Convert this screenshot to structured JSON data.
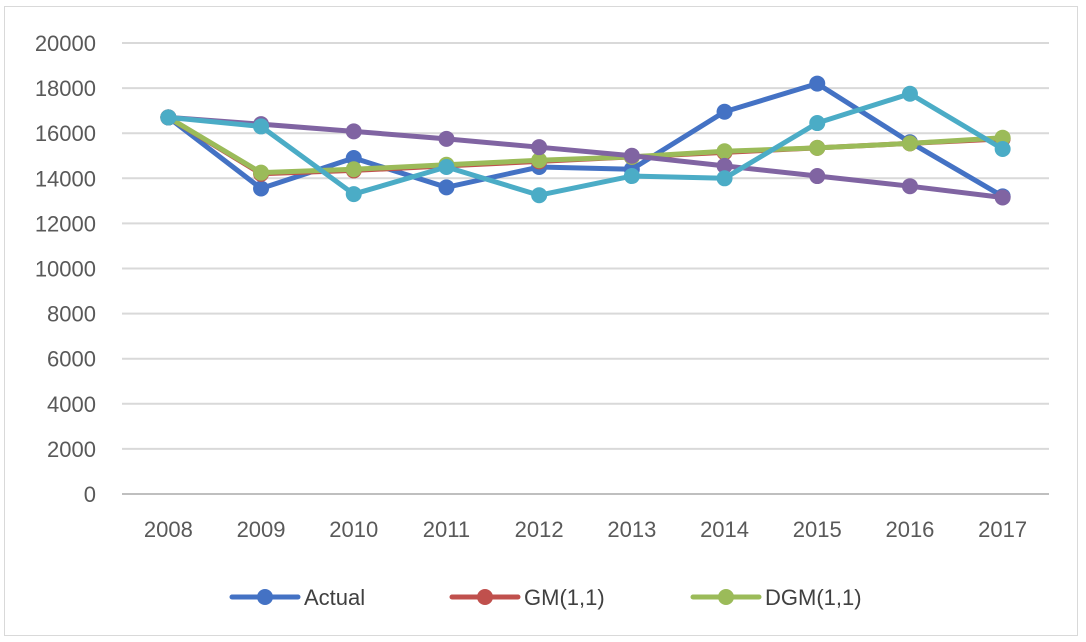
{
  "chart_data": {
    "type": "line",
    "categories": [
      "2008",
      "2009",
      "2010",
      "2011",
      "2012",
      "2013",
      "2014",
      "2015",
      "2016",
      "2017"
    ],
    "ylim": [
      0,
      20000
    ],
    "yticks": [
      0,
      2000,
      4000,
      6000,
      8000,
      10000,
      12000,
      14000,
      16000,
      18000,
      20000
    ],
    "ytick_labels": [
      "0",
      "2000",
      "4000",
      "6000",
      "8000",
      "10000",
      "12000",
      "14000",
      "16000",
      "18000",
      "20000"
    ],
    "grid": "horizontal",
    "legend_position": "bottom",
    "series": [
      {
        "name": "Actual",
        "color": "#4472c4",
        "in_legend": true,
        "values": [
          16700,
          13550,
          14900,
          13600,
          14500,
          14400,
          16950,
          18200,
          15600,
          13200
        ]
      },
      {
        "name": "GM(1,1)",
        "color": "#c0504d",
        "in_legend": true,
        "values": [
          16700,
          14200,
          14350,
          14550,
          14750,
          14950,
          15150,
          15350,
          15550,
          15750
        ]
      },
      {
        "name": "DGM(1,1)",
        "color": "#9bbb59",
        "in_legend": true,
        "values": [
          16700,
          14250,
          14400,
          14600,
          14800,
          14950,
          15200,
          15350,
          15550,
          15800
        ]
      },
      {
        "name": "",
        "color": "#8064a2",
        "in_legend": false,
        "values": [
          16700,
          16400,
          16080,
          15750,
          15380,
          15000,
          14550,
          14100,
          13650,
          13150
        ]
      },
      {
        "name": "",
        "color": "#4bacc6",
        "in_legend": false,
        "values": [
          16700,
          16300,
          13300,
          14500,
          13250,
          14100,
          14000,
          16450,
          17750,
          15300
        ]
      }
    ]
  }
}
